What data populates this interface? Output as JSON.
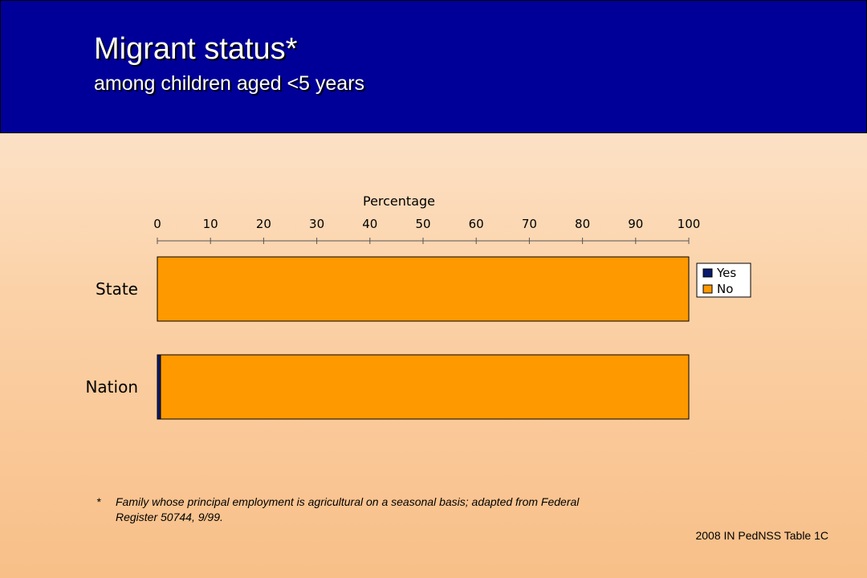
{
  "header": {
    "title": "Migrant status*",
    "subtitle": "among children aged <5 years"
  },
  "colors": {
    "header_bg": "#000099",
    "yes": "#0a1a6e",
    "no": "#ff9900"
  },
  "chart_data": {
    "type": "bar",
    "orientation": "horizontal",
    "stacked": true,
    "xlabel": "Percentage",
    "xlim": [
      0,
      100
    ],
    "ticks": [
      0,
      10,
      20,
      30,
      40,
      50,
      60,
      70,
      80,
      90,
      100
    ],
    "axis_position": "top",
    "categories": [
      "State",
      "Nation"
    ],
    "series": [
      {
        "name": "Yes",
        "values": [
          0.0,
          0.6
        ],
        "color": "#0a1a6e"
      },
      {
        "name": "No",
        "values": [
          100.0,
          99.4
        ],
        "color": "#ff9900"
      }
    ],
    "legend_position": "right"
  },
  "footnote": {
    "mark": "*",
    "text": "Family whose principal employment is agricultural on a seasonal basis; adapted from Federal Register  50744, 9/99."
  },
  "source": "2008 IN PedNSS Table 1C"
}
